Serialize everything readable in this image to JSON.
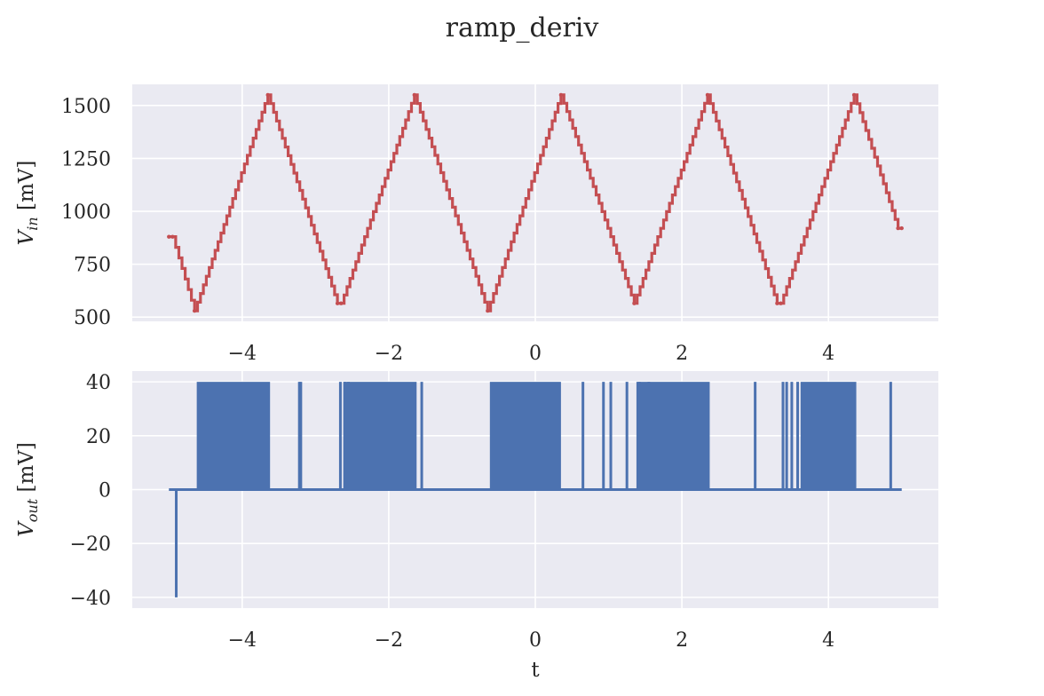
{
  "figure": {
    "title": "ramp_deriv"
  },
  "chart_data": [
    {
      "type": "line",
      "title": "",
      "xlabel": "",
      "ylabel": "V_in [mV]",
      "ylabel_main": "V",
      "ylabel_sub": "in",
      "ylabel_unit": " [mV]",
      "xlim": [
        -5.5,
        5.5
      ],
      "ylim": [
        480,
        1600
      ],
      "xticks": [
        -4,
        -2,
        0,
        2,
        4
      ],
      "xtick_labels": [
        "−4",
        "−2",
        "0",
        "2",
        "4"
      ],
      "yticks": [
        500,
        750,
        1000,
        1250,
        1500
      ],
      "ytick_labels": [
        "500",
        "750",
        "1000",
        "1250",
        "1500"
      ],
      "grid": true,
      "series": [
        {
          "color": "#c44e52",
          "style": "staircase triangle wave",
          "points": [
            [
              -5.0,
              880
            ],
            [
              -4.95,
              880
            ],
            [
              -4.65,
              530
            ],
            [
              -3.65,
              1550
            ],
            [
              -2.7,
              565
            ],
            [
              -2.65,
              565
            ],
            [
              -1.65,
              1550
            ],
            [
              -0.65,
              530
            ],
            [
              0.35,
              1550
            ],
            [
              1.35,
              565
            ],
            [
              2.35,
              1550
            ],
            [
              3.3,
              565
            ],
            [
              3.35,
              565
            ],
            [
              4.35,
              1550
            ],
            [
              4.95,
              920
            ],
            [
              5.0,
              920
            ]
          ]
        }
      ]
    },
    {
      "type": "line",
      "title": "",
      "xlabel": "t",
      "ylabel": "V_out [mV]",
      "ylabel_main": "V",
      "ylabel_sub": "out",
      "ylabel_unit": " [mV]",
      "xlim": [
        -5.5,
        5.5
      ],
      "ylim": [
        -44,
        44
      ],
      "xticks": [
        -4,
        -2,
        0,
        2,
        4
      ],
      "xtick_labels": [
        "−4",
        "−2",
        "0",
        "2",
        "4"
      ],
      "yticks": [
        -40,
        -20,
        0,
        20,
        40
      ],
      "ytick_labels": [
        "−40",
        "−20",
        "0",
        "20",
        "40"
      ],
      "grid": true,
      "series": [
        {
          "color": "#4c72b0",
          "baseline": 0,
          "dense_pulse_bands": [
            [
              -4.62,
              -3.62
            ],
            [
              -2.62,
              -1.62
            ],
            [
              -0.62,
              0.35
            ],
            [
              1.38,
              2.38
            ],
            [
              3.62,
              4.38
            ]
          ],
          "band_high": 40,
          "single_spikes": [
            [
              -4.9,
              -40
            ],
            [
              -3.22,
              40
            ],
            [
              -3.2,
              40
            ],
            [
              -2.66,
              40
            ],
            [
              -2.6,
              40
            ],
            [
              -2.55,
              40
            ],
            [
              -1.55,
              40
            ],
            [
              0.65,
              40
            ],
            [
              0.93,
              40
            ],
            [
              1.03,
              40
            ],
            [
              1.25,
              40
            ],
            [
              1.42,
              40
            ],
            [
              1.55,
              40
            ],
            [
              3.0,
              40
            ],
            [
              3.38,
              40
            ],
            [
              3.43,
              40
            ],
            [
              3.5,
              40
            ],
            [
              3.58,
              40
            ],
            [
              4.85,
              40
            ]
          ],
          "x_range": [
            -5.0,
            5.0
          ]
        }
      ]
    }
  ]
}
